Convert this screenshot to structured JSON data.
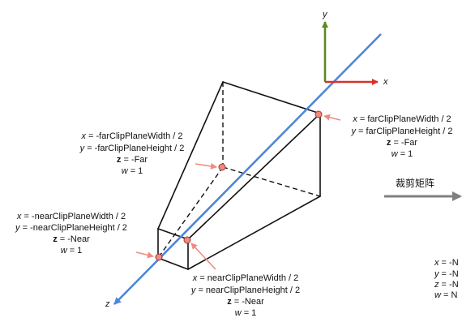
{
  "axes": {
    "x": {
      "label": "x",
      "color": "#d9302a"
    },
    "y": {
      "label": "y",
      "color": "#5a8a1f"
    },
    "z": {
      "label": "z",
      "color": "#4f86d6"
    }
  },
  "colors": {
    "edge": "#111111",
    "marker_fill": "#f08a80",
    "marker_stroke": "#9b3a32",
    "pointer": "#f08a80",
    "transform_arrow": "#808080"
  },
  "far_left": {
    "x_name": "x",
    "x_expr": " = -farClipPlaneWidth / 2",
    "y_name": "y",
    "y_expr": " = -farClipPlaneHeight / 2",
    "z_name": "z",
    "z_expr": " = -Far",
    "w_name": "w",
    "w_expr": " = 1"
  },
  "far_right": {
    "x_name": "x",
    "x_expr": " = farClipPlaneWidth / 2",
    "y_name": "y",
    "y_expr": " = farClipPlaneHeight / 2",
    "z_name": "z",
    "z_expr": " = -Far",
    "w_name": "w",
    "w_expr": " = 1"
  },
  "near_left": {
    "x_name": "x",
    "x_expr": " = -nearClipPlaneWidth / 2",
    "y_name": "y",
    "y_expr": " = -nearClipPlaneHeight / 2",
    "z_name": "z",
    "z_expr": " = -Near",
    "w_name": "w",
    "w_expr": " = 1"
  },
  "near_right": {
    "x_name": "x",
    "x_expr": " = nearClipPlaneWidth / 2",
    "y_name": "y",
    "y_expr": " = nearClipPlaneHeight / 2",
    "z_name": "z",
    "z_expr": " = -Near",
    "w_name": "w",
    "w_expr": " = 1"
  },
  "transform": {
    "label": "裁剪矩阵"
  },
  "clipped": {
    "x_name": "x",
    "x_expr": " = -N",
    "y_name": "y",
    "y_expr": " = -N",
    "z_name": "z",
    "z_expr": " = -N",
    "w_name": "w",
    "w_expr": " = N"
  }
}
